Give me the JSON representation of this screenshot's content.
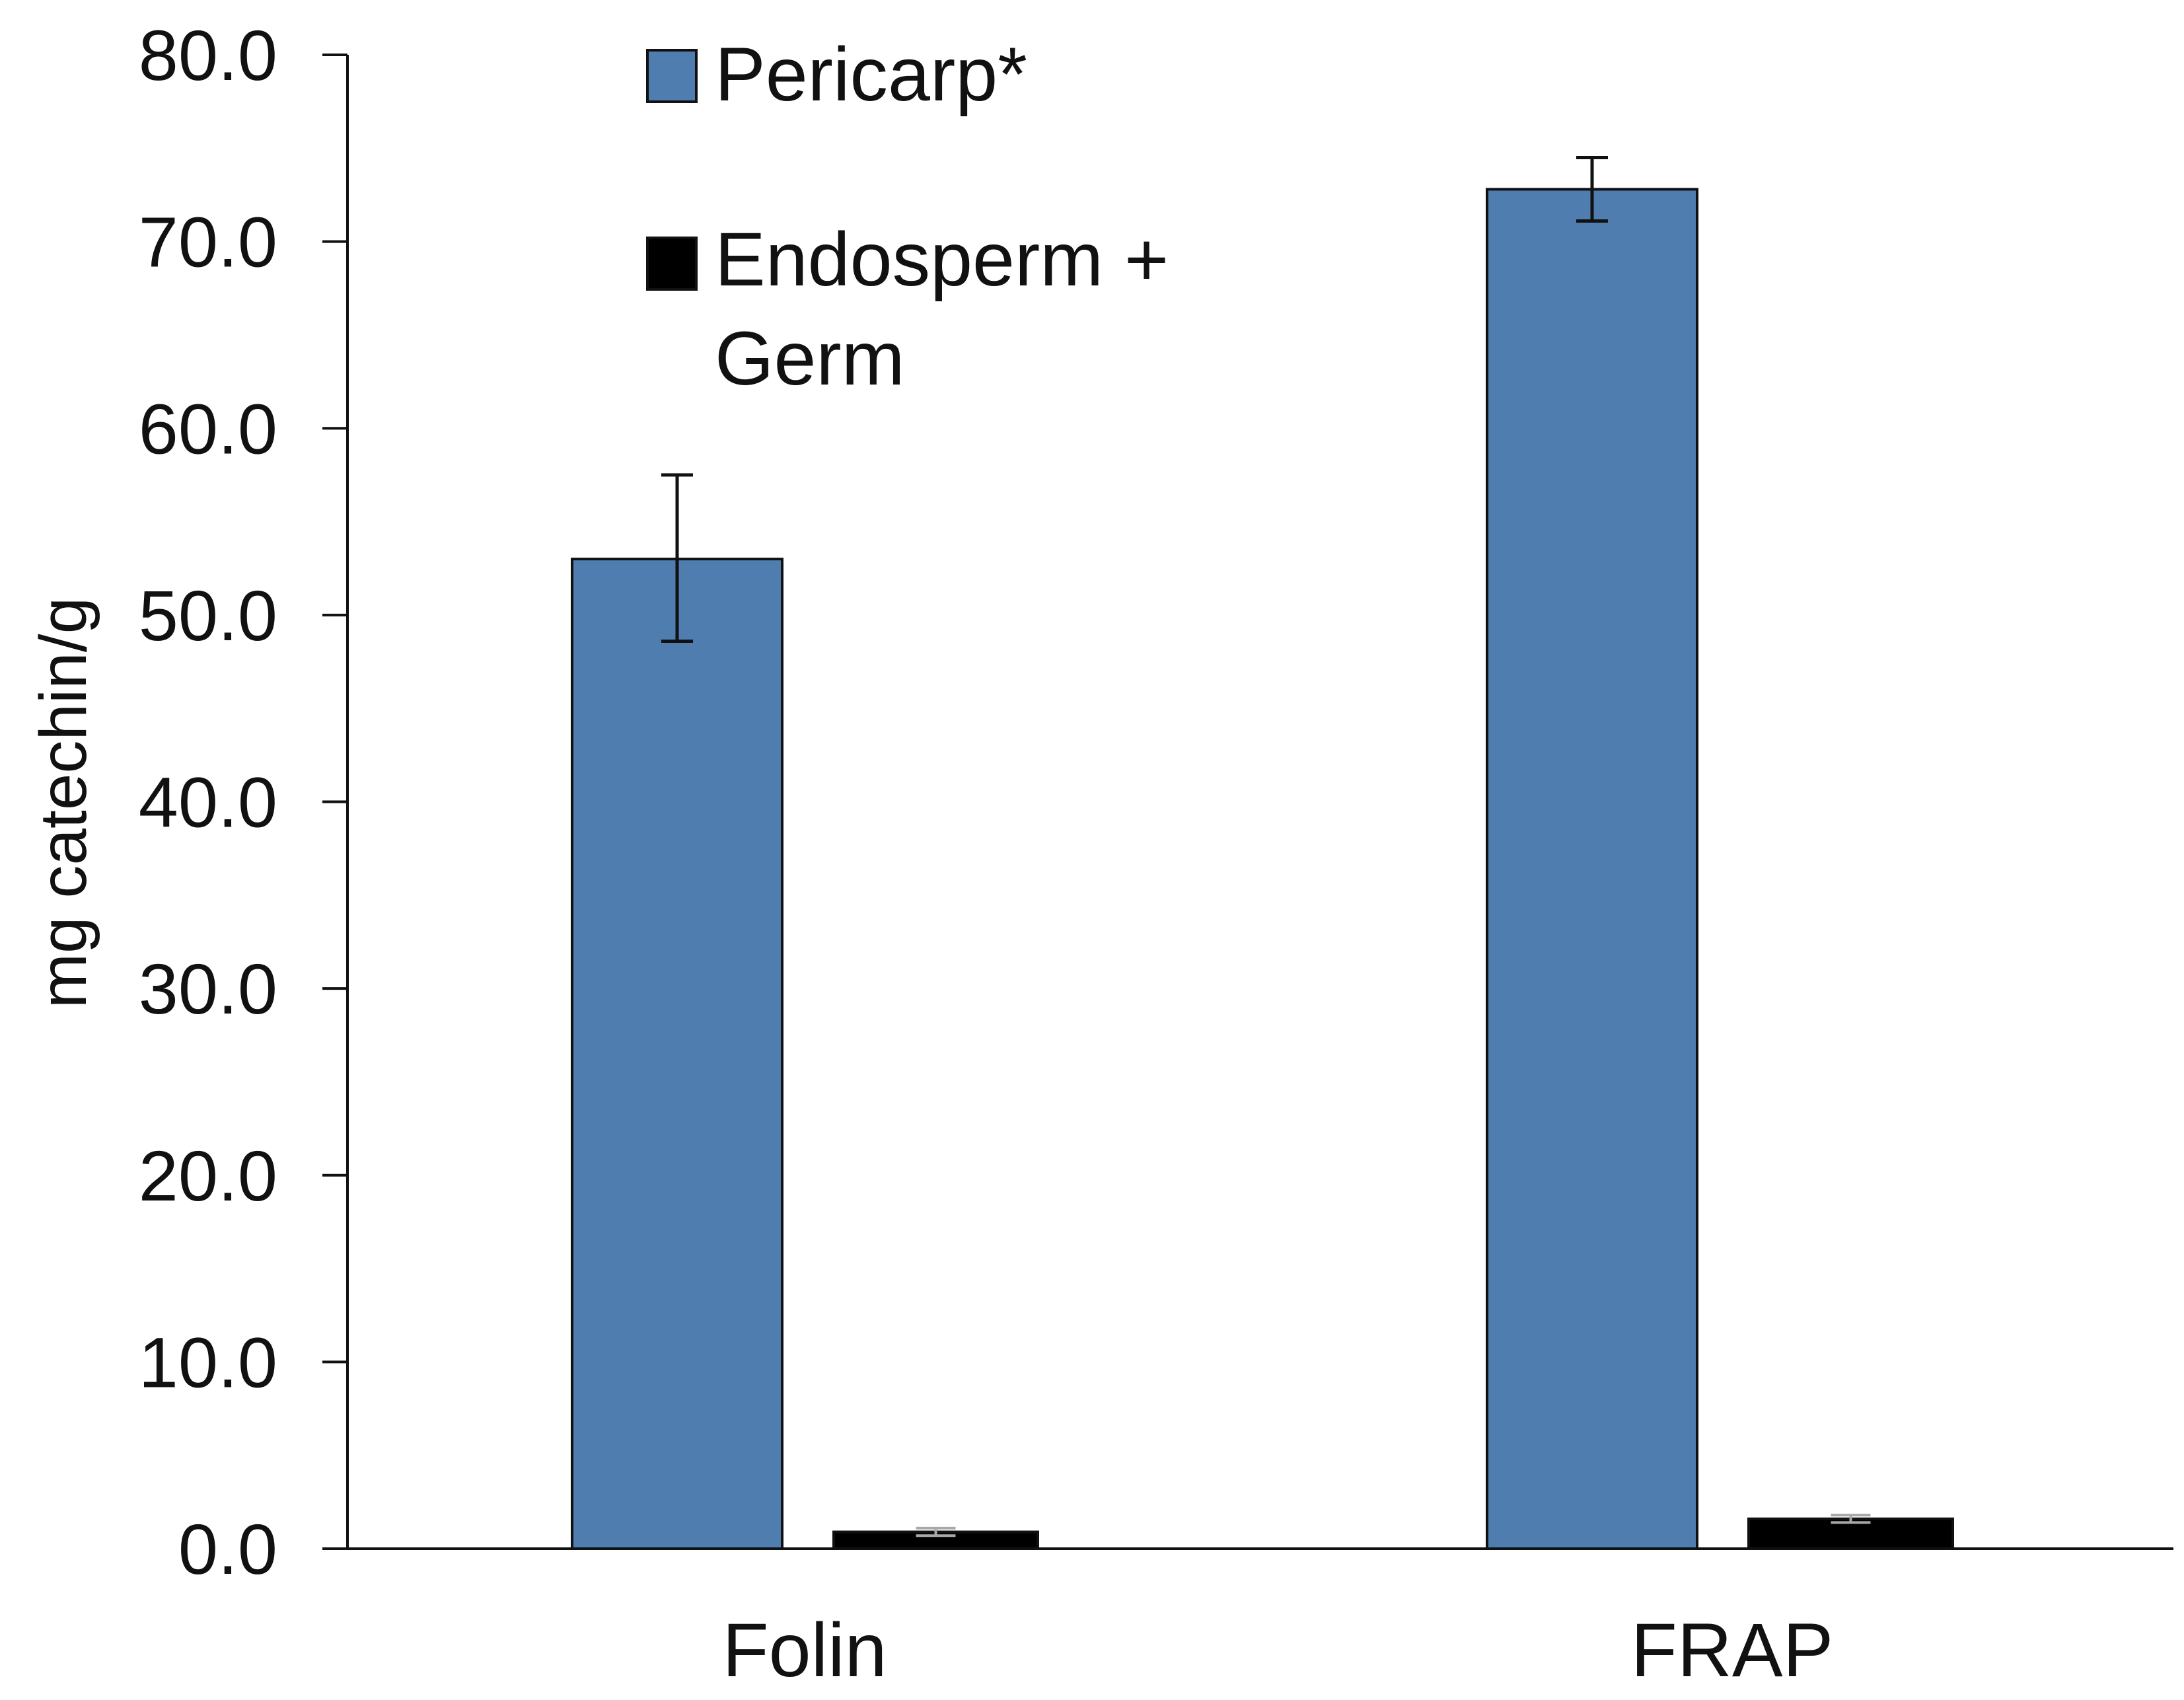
{
  "chart_data": {
    "type": "bar",
    "title": "",
    "xlabel": "",
    "ylabel": "mg catechin/g",
    "categories": [
      "Folin",
      "FRAP"
    ],
    "ylim": [
      0,
      80
    ],
    "yticks": [
      "0.0",
      "10.0",
      "20.0",
      "30.0",
      "40.0",
      "50.0",
      "60.0",
      "70.0",
      "80.0"
    ],
    "grid": false,
    "legend_position": "top-left",
    "series": [
      {
        "name": "Pericarp*",
        "color": "#4f7db0",
        "values": [
          53.0,
          72.8
        ],
        "error_low": [
          48.6,
          71.1
        ],
        "error_high": [
          57.5,
          74.5
        ]
      },
      {
        "name": "Endosperm + Germ",
        "color": "#000000",
        "values": [
          0.9,
          1.6
        ],
        "error_low": [
          0.7,
          1.4
        ],
        "error_high": [
          1.1,
          1.8
        ]
      }
    ]
  }
}
